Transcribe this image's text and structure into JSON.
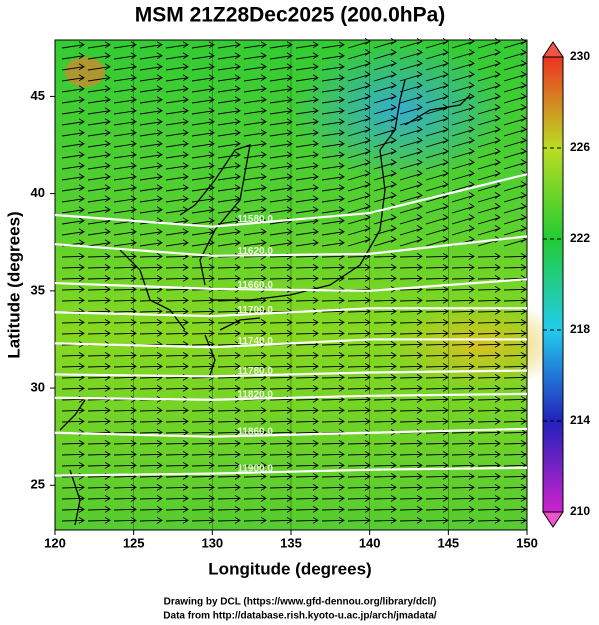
{
  "chart_data": {
    "type": "contour-map",
    "title": "MSM 21Z28Dec2025 (200.0hPa)",
    "x_label": "Longitude (degrees)",
    "y_label": "Latitude  (degrees)",
    "xlim": [
      120,
      150
    ],
    "xticks": [
      120,
      125,
      130,
      135,
      140,
      145,
      150
    ],
    "ylim": [
      22.7,
      47.9
    ],
    "yticks": [
      25,
      30,
      35,
      40,
      45
    ],
    "colorbar": {
      "lim": [
        210,
        230
      ],
      "ticks": [
        210,
        214,
        218,
        222,
        226,
        230
      ]
    },
    "contour_x": [
      120,
      130,
      140,
      150
    ],
    "contours": [
      {
        "label": "11580.0",
        "values": [
          38.9,
          38.3,
          39.0,
          41.0
        ]
      },
      {
        "label": "11620.0",
        "values": [
          37.4,
          36.8,
          36.9,
          37.8
        ]
      },
      {
        "label": "11660.0",
        "values": [
          35.4,
          35.1,
          35.0,
          35.6
        ]
      },
      {
        "label": "11700.0",
        "values": [
          33.9,
          33.7,
          34.1,
          34.1
        ]
      },
      {
        "label": "11740.0",
        "values": [
          32.3,
          32.1,
          32.5,
          32.5
        ]
      },
      {
        "label": "11780.0",
        "values": [
          30.7,
          30.6,
          30.8,
          30.9
        ]
      },
      {
        "label": "11820.0",
        "values": [
          29.5,
          29.4,
          29.6,
          29.7
        ]
      },
      {
        "label": "11860.0",
        "values": [
          27.7,
          27.5,
          27.7,
          27.9
        ]
      },
      {
        "label": "11900.0",
        "values": [
          25.5,
          25.6,
          25.8,
          25.9
        ]
      }
    ],
    "credits": [
      "Drawing by DCL (https://www.gfd-dennou.org/library/dcl/)",
      "Data from http://database.rish.kyoto-u.ac.jp/arch/jmadata/"
    ]
  }
}
